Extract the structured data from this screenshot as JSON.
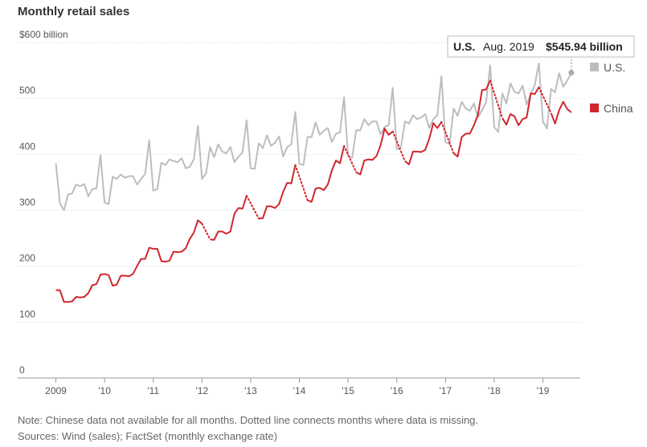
{
  "chart_data": {
    "type": "line",
    "title": "Monthly retail sales",
    "ylim": [
      0,
      600
    ],
    "y_ticks": [
      {
        "value": 600,
        "label": "$600 billion"
      },
      {
        "value": 500,
        "label": "500"
      },
      {
        "value": 400,
        "label": "400"
      },
      {
        "value": 300,
        "label": "300"
      },
      {
        "value": 200,
        "label": "200"
      },
      {
        "value": 100,
        "label": "100"
      },
      {
        "value": 0,
        "label": "0"
      }
    ],
    "x_ticks": [
      {
        "year": 2009,
        "label": "2009"
      },
      {
        "year": 2010,
        "label": "'10"
      },
      {
        "year": 2011,
        "label": "'11"
      },
      {
        "year": 2012,
        "label": "'12"
      },
      {
        "year": 2013,
        "label": "'13"
      },
      {
        "year": 2014,
        "label": "'14"
      },
      {
        "year": 2015,
        "label": "'15"
      },
      {
        "year": 2016,
        "label": "'16"
      },
      {
        "year": 2017,
        "label": "'17"
      },
      {
        "year": 2018,
        "label": "'18"
      },
      {
        "year": 2019,
        "label": "'19"
      }
    ],
    "x_start": "2009-01",
    "series": [
      {
        "name": "U.S.",
        "color": "#bdbdbd",
        "values": [
          384,
          312,
          300,
          328,
          330,
          346,
          343,
          347,
          325,
          338,
          339,
          399,
          314,
          311,
          360,
          356,
          364,
          358,
          361,
          361,
          346,
          356,
          365,
          425,
          335,
          338,
          385,
          381,
          391,
          388,
          386,
          393,
          375,
          378,
          391,
          451,
          356,
          366,
          413,
          395,
          418,
          405,
          402,
          413,
          386,
          396,
          404,
          461,
          375,
          374,
          420,
          411,
          434,
          415,
          421,
          432,
          396,
          413,
          418,
          476,
          383,
          381,
          431,
          431,
          457,
          435,
          442,
          447,
          422,
          437,
          439,
          502,
          397,
          394,
          443,
          443,
          463,
          452,
          459,
          459,
          436,
          449,
          452,
          519,
          409,
          412,
          459,
          455,
          470,
          463,
          466,
          472,
          447,
          463,
          470,
          540,
          422,
          418,
          482,
          469,
          494,
          482,
          478,
          491,
          466,
          479,
          493,
          559,
          449,
          440,
          509,
          491,
          527,
          512,
          509,
          523,
          489,
          508,
          524,
          563,
          459,
          446,
          517,
          511,
          545,
          521,
          532,
          545.94
        ]
      },
      {
        "name": "China",
        "color": "#d0262d",
        "values": [
          157,
          157,
          136,
          136,
          137,
          145,
          144,
          145,
          152,
          166,
          168,
          185,
          186,
          184,
          165,
          167,
          183,
          183,
          182,
          186,
          200,
          213,
          213,
          233,
          231,
          231,
          209,
          208,
          210,
          226,
          225,
          226,
          232,
          249,
          260,
          282,
          276,
          null,
          248,
          247,
          262,
          262,
          258,
          262,
          294,
          304,
          303,
          326,
          null,
          null,
          285,
          286,
          307,
          307,
          304,
          311,
          333,
          349,
          348,
          381,
          null,
          null,
          318,
          315,
          339,
          340,
          336,
          346,
          371,
          389,
          384,
          415,
          null,
          null,
          368,
          364,
          389,
          391,
          390,
          397,
          416,
          446,
          435,
          441,
          null,
          null,
          388,
          382,
          405,
          405,
          404,
          408,
          428,
          456,
          447,
          458,
          null,
          null,
          402,
          396,
          431,
          437,
          437,
          452,
          471,
          515,
          516,
          532,
          null,
          null,
          465,
          453,
          472,
          468,
          452,
          463,
          466,
          509,
          508,
          520,
          null,
          null,
          474,
          455,
          479,
          494,
          481,
          475
        ]
      }
    ],
    "legend": [
      {
        "label": "U.S.",
        "color": "#bdbdbd"
      },
      {
        "label": "China",
        "color": "#d0262d"
      }
    ],
    "grid": true,
    "legend_position": "right"
  },
  "tooltip": {
    "country": "U.S.",
    "date": "Aug. 2019",
    "value": "$545.94 billion"
  },
  "footnotes": {
    "note": "Note: Chinese data not available for all months. Dotted line connects months where data is missing.",
    "sources": "Sources: Wind (sales); FactSet (monthly exchange rate)"
  }
}
